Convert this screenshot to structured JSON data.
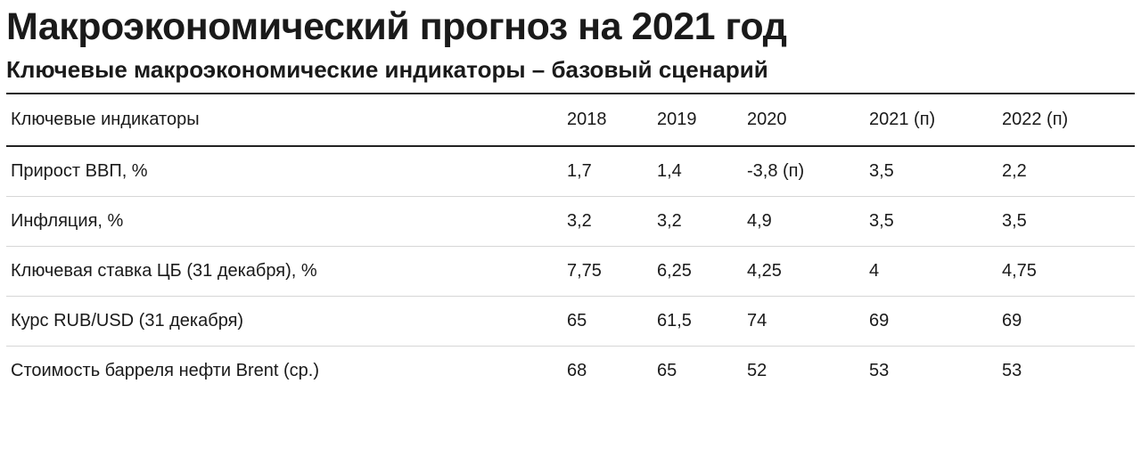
{
  "header": {
    "title": "Макроэкономический прогноз на 2021 год",
    "subtitle": "Ключевые макроэкономические индикаторы – базовый сценарий"
  },
  "table": {
    "columns": [
      "Ключевые индикаторы",
      "2018",
      "2019",
      "2020",
      "2021 (п)",
      "2022 (п)"
    ],
    "rows": [
      [
        "Прирост ВВП, %",
        "1,7",
        "1,4",
        "-3,8 (п)",
        "3,5",
        "2,2"
      ],
      [
        "Инфляция, %",
        "3,2",
        "3,2",
        "4,9",
        "3,5",
        "3,5"
      ],
      [
        "Ключевая ставка ЦБ (31 декабря), %",
        "7,75",
        "6,25",
        "4,25",
        "4",
        "4,75"
      ],
      [
        "Курс RUB/USD (31 декабря)",
        "65",
        "61,5",
        "74",
        "69",
        "69"
      ],
      [
        "Стоимость барреля нефти Brent (ср.)",
        "68",
        "65",
        "52",
        "53",
        "53"
      ]
    ]
  }
}
